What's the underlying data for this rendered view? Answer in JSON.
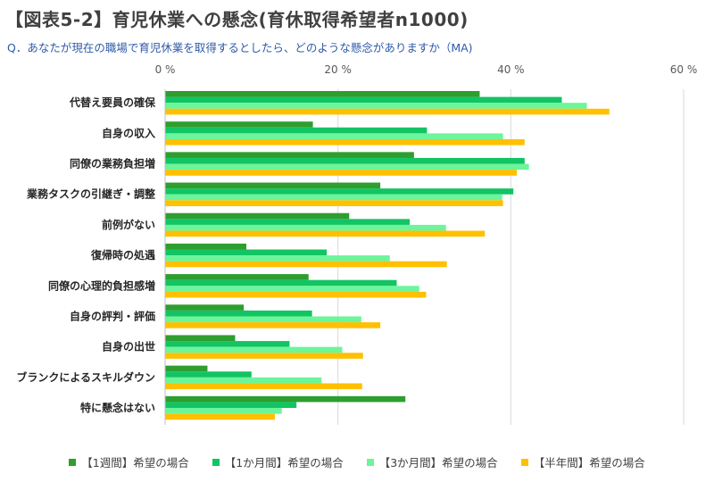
{
  "header": {
    "title": "【図表5-2】育児休業への懸念(育休取得希望者n1000)",
    "question": "Q．あなたが現在の職場で育児休業を取得するとしたら、どのような懸念がありますか（MA)"
  },
  "chart_data": {
    "type": "bar",
    "orientation": "horizontal",
    "xlim": [
      0,
      60
    ],
    "x_ticks": [
      "0 %",
      "20 %",
      "40 %",
      "60 %"
    ],
    "x_tick_values": [
      0,
      20,
      40,
      60
    ],
    "grid": true,
    "legend_position": "bottom",
    "categories": [
      "代替え要員の確保",
      "自身の収入",
      "同僚の業務負担増",
      "業務タスクの引継ぎ・調整",
      "前例がない",
      "復帰時の処遇",
      "同僚の心理的負担感増",
      "自身の評判・評価",
      "自身の出世",
      "ブランクによるスキルダウン",
      "特に懸念はない"
    ],
    "series": [
      {
        "name": "【1週間】希望の場合",
        "color": "#2e9e2e",
        "values": [
          36.4,
          17.1,
          28.8,
          24.9,
          21.3,
          9.4,
          16.6,
          9.1,
          8.1,
          4.9,
          27.8
        ]
      },
      {
        "name": "【1か月間】希望の場合",
        "color": "#12c463",
        "values": [
          45.9,
          30.3,
          41.6,
          40.3,
          28.3,
          18.7,
          26.8,
          17.0,
          14.4,
          10.0,
          15.2
        ]
      },
      {
        "name": "【3か月間】希望の場合",
        "color": "#6cf59a",
        "values": [
          48.8,
          39.1,
          42.1,
          39.0,
          32.5,
          26.0,
          29.4,
          22.7,
          20.5,
          18.1,
          13.5
        ]
      },
      {
        "name": "【半年間】希望の場合",
        "color": "#ffc000",
        "values": [
          51.4,
          41.6,
          40.7,
          39.1,
          37.0,
          32.6,
          30.2,
          24.9,
          22.9,
          22.8,
          12.7
        ]
      }
    ]
  }
}
